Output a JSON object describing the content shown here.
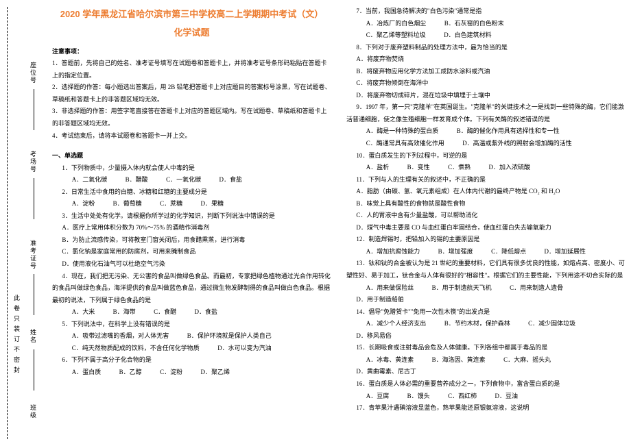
{
  "vertical": {
    "labels": [
      "座位号",
      "考场号",
      "准考证号",
      "姓名",
      "班级"
    ],
    "seal": "此卷只装订不密封"
  },
  "header": {
    "title": "2020 学年黑龙江省哈尔滨市第三中学校高二上学期期中考试（文）",
    "subtitle": "化学试题"
  },
  "notice_hdr": "注意事项：",
  "notices": [
    "1．答题前，先将自己的姓名、准考证号填写在试题卷和答题卡上，并将准考证号条形码粘贴在答题卡上的指定位置。",
    "2．选择题的作答：每小题选出答案后，用 2B 铅笔把答题卡上对应题目的答案标号涂黑，写在试题卷、草稿纸和答题卡上的非答题区域均无效。",
    "3．非选择题的作答：用签字笔直接答在答题卡上对应的答题区域内。写在试题卷、草稿纸和答题卡上的非答题区域均无效。",
    "4．考试结束后，请将本试题卷和答题卡一并上交。"
  ],
  "sec1": "一、单选题",
  "left_items": [
    {
      "q": "1．下列物质中，少量摄入体内就会使人中毒的是",
      "opts": [
        "A．二氧化碳",
        "B．醋酸",
        "C．一氧化碳",
        "D．食盐"
      ]
    },
    {
      "q": "2．日常生活中食用的白糖、冰糖和红糖的主要成分是",
      "opts": [
        "A．淀粉",
        "B．葡萄糖",
        "C．蔗糖",
        "D．果糖"
      ]
    },
    {
      "q": "3．生活中处处有化学。请根据你所学过的化学知识，判断下列说法中错误的是",
      "opts": [
        "A．医疗上常用体积分数为 70%～75% 的酒精作消毒剂",
        "B．为防止流感传染，可将教室门窗关闭后，用食醋熏蒸，进行消毒",
        "C．氯化钠是家庭常用的防腐剂，可用来腌制食品",
        "D．使用液化石油气可以杜绝空气污染"
      ]
    },
    {
      "q": "4．现在，我们把无污染、无公害的食品叫做绿色食品。而最初，专家把绿色植物通过光合作用转化的食品叫做绿色食品，海洋提供的食品叫做蓝色食品，通过微生物发酵制得的食品叫做白色食品。根据最初的说法，下列属于绿色食品的是",
      "opts": [
        "A．大米",
        "B．海带",
        "C．食醋",
        "D．食盐"
      ]
    },
    {
      "q": "5．下列说法中，在科学上没有错误的是",
      "opts": [
        "A．吸带过滤嘴的香烟，对人体无害",
        "B．保护环境就是保护人类自己",
        "C．纯天然物质配成的饮料，不含任何化学物质",
        "D．水可以变为汽油"
      ]
    },
    {
      "q": "6．下列不属于高分子化合物的是",
      "opts": [
        "A．蛋白质",
        "B．乙醇",
        "C．淀粉",
        "D．聚乙烯"
      ]
    }
  ],
  "right_items": [
    {
      "q": "7．当前，我国急待解决的\"白色污染\"通常是指",
      "opts": [
        "A．冶炼厂的白色烟尘",
        "B．石灰窑的白色粉末",
        "C．聚乙烯等塑料垃圾",
        "D．白色建筑材料"
      ]
    },
    {
      "q": "8．下列对于废弃塑料制品的处理方法中，最为恰当的是",
      "opts": [
        "A．将废弃物焚烧",
        "B．将废弃物应用化学方法加工成防水涂料或汽油",
        "C．将废弃物倾倒在海洋中",
        "D．将废弃物切成碎片，混在垃圾中填埋于土壤中"
      ]
    },
    {
      "q": "9．1997 年，第一只\"克隆羊\"在英国诞生。\"克隆羊\"的关键技术之一是找到一些特殊的酶，它们能激活普通细胞，使之像生殖细胞一样发育成个体。下列有关酶的叙述错误的是",
      "opts": [
        "A．酶是一种特殊的蛋白质",
        "B．酶的催化作用具有选择性和专一性",
        "C．酶通常具有高效催化作用",
        "D．高温或紫外线的照射会增加酶的活性"
      ]
    },
    {
      "q": "10．蛋白质发生的下列过程中，可逆的是",
      "opts": [
        "A．盐析",
        "B．变性",
        "C．煮熟",
        "D．加入浓硫酸"
      ]
    },
    {
      "q": "11．下列与人的生理有关的叙述中，不正确的是",
      "opts": [
        "A．脂肪（由碳、氢、氧元素组成）在人体内代谢的最终产物是 CO₂ 和 H₂O",
        "B．味觉上具有酸性的食物就是酸性食物",
        "C．人的胃液中含有少量盐酸，可以帮助消化",
        "D．煤气中毒主要是 CO 与血红蛋白牢固结合，使血红蛋白失去输氧能力"
      ]
    },
    {
      "q": "12．制造焊锡时，把铅加入的锡的主要原因是",
      "opts": [
        "A．增加抗腐蚀能力",
        "B．增加强度",
        "C．降低熔点",
        "D．增加延展性"
      ]
    },
    {
      "q": "13．钛和钛的合金被认为是 21 世纪的重要材料，它们具有很多优良的性能，如熔点高、密度小、可塑性好、易于加工，钛合金与人体有很好的\"相容性\"。根据它们的主要性能，下列用途不切合实际的是",
      "opts": [
        "A．用来做保险丝",
        "B．用于制造航天飞机",
        "C．用来制造人造骨",
        "D．用于制造船舶"
      ]
    },
    {
      "q": "14．倡导\"免赠贺卡\"\"免用一次性木筷\"的出发点是",
      "opts": [
        "A．减少个人经济支出",
        "B．节约木材，保护森林",
        "C．减少固体垃圾",
        "D．移风易俗"
      ]
    },
    {
      "q": "15．长期吸食或注射毒品会危及人体健康。下列各组中都属于毒品的是",
      "opts": [
        "A．冰毒、黄连素",
        "B．海洛因、黄连素",
        "C．大麻、摇头丸",
        "D．黄曲霉素、尼古丁"
      ]
    },
    {
      "q": "16．蛋白质是人体必需的重要营养成分之一，下列食物中，富含蛋白质的是",
      "opts": [
        "A．豆腐",
        "B．馒头",
        "C．西红柿",
        "D．豆油"
      ]
    },
    {
      "q": "17．青苹果汁遇碘溶液显蓝色，熟苹果能还原银氨溶液，这说明",
      "opts": []
    }
  ],
  "colors": {
    "accent": "#ed7d31",
    "text": "#000000",
    "bg": "#ffffff"
  }
}
